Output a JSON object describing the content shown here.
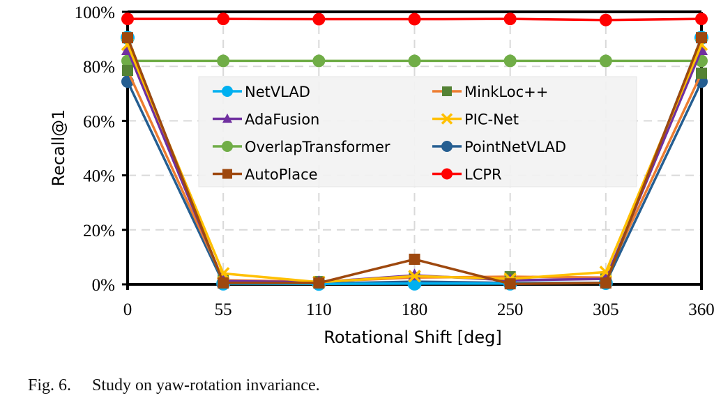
{
  "chart_data": {
    "type": "line",
    "title": "",
    "xlabel": "Rotational Shift [deg]",
    "ylabel": "Recall@1",
    "x": [
      0,
      55,
      110,
      180,
      250,
      305,
      360
    ],
    "x_tick_labels": [
      "0",
      "55",
      "110",
      "180",
      "250",
      "305",
      "360"
    ],
    "ylim": [
      0,
      100
    ],
    "y_ticks": [
      0,
      20,
      40,
      60,
      80,
      100
    ],
    "y_tick_labels": [
      "0%",
      "20%",
      "40%",
      "60%",
      "80%",
      "100%"
    ],
    "grid": true,
    "legend_position": "center",
    "series": [
      {
        "name": "NetVLAD",
        "color": "#00B0F0",
        "marker": "circle",
        "values": [
          90.5,
          0.3,
          0.2,
          0.3,
          0.3,
          0.5,
          90.5
        ]
      },
      {
        "name": "MinkLoc++",
        "color": "#ED7D31",
        "marker_color": "#548235",
        "marker": "square",
        "values": [
          78.5,
          1.5,
          1.0,
          2.5,
          2.8,
          2.5,
          77.5
        ]
      },
      {
        "name": "AdaFusion",
        "color": "#7030A0",
        "marker": "triangle",
        "values": [
          86.0,
          1.2,
          0.8,
          3.3,
          1.5,
          2.0,
          86.0
        ]
      },
      {
        "name": "PIC-Net",
        "color": "#FFC000",
        "marker": "x",
        "values": [
          88.0,
          4.0,
          0.8,
          3.0,
          2.0,
          4.5,
          88.0
        ]
      },
      {
        "name": "OverlapTransformer",
        "color": "#70AD47",
        "marker": "circle",
        "values": [
          82.0,
          82.0,
          82.0,
          82.0,
          82.0,
          82.0,
          82.0
        ]
      },
      {
        "name": "PointNetVLAD",
        "color": "#255E91",
        "marker": "circle",
        "values": [
          74.4,
          0.5,
          0.3,
          1.0,
          0.5,
          0.5,
          74.4
        ]
      },
      {
        "name": "AutoPlace",
        "color": "#9E480E",
        "marker": "square",
        "values": [
          90.5,
          0.5,
          0.5,
          9.2,
          0.2,
          0.5,
          90.5
        ]
      },
      {
        "name": "LCPR",
        "color": "#FF0000",
        "marker": "circle",
        "values": [
          97.4,
          97.4,
          97.3,
          97.3,
          97.4,
          97.0,
          97.4
        ]
      }
    ]
  },
  "caption": {
    "figure_number": "Fig. 6.",
    "text": "Study on yaw-rotation invariance."
  }
}
